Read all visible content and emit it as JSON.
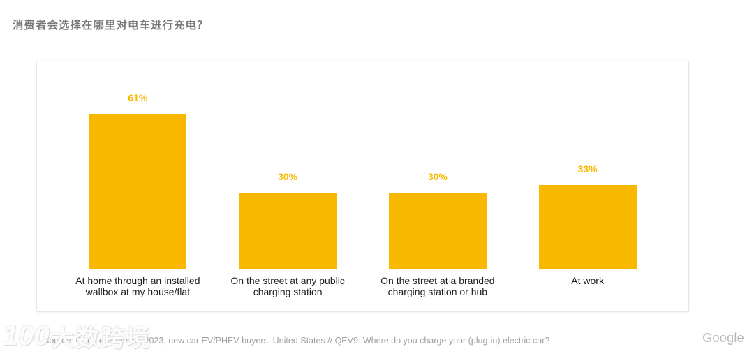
{
  "header": {
    "title": "消费者会选择在哪里对电车进行充电？"
  },
  "chart_data": {
    "type": "bar",
    "title": "消费者会选择在哪里对电车进行充电？",
    "categories": [
      "At home through an installed wallbox at my house/flat",
      "On the street at any public charging station",
      "On the street at a branded charging station or hub",
      "At work"
    ],
    "values": [
      61,
      30,
      30,
      33
    ],
    "value_labels": [
      "61%",
      "30%",
      "30%",
      "33%"
    ],
    "bar_color": "#F9B800",
    "value_label_color": "#F9B800",
    "category_label_color": "#1d1d1d",
    "ylim": [
      0,
      81.5
    ],
    "grid": false,
    "legend": false
  },
  "footer": {
    "source_text": "Source: Google Gearshift 2023, new car EV/PHEV buyers, United States // QEV9: Where do you charge your (plug-in) electric car?",
    "brand_wordmark": "Google",
    "watermark_logo": "100",
    "watermark_text": "大数跨境"
  }
}
